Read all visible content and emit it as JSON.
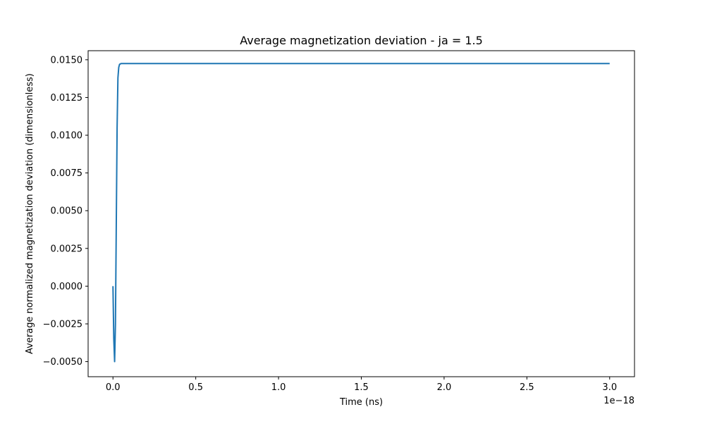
{
  "chart_data": {
    "type": "line",
    "title": "Average magnetization deviation - ja = 1.5",
    "xlabel": "Time (ns)",
    "ylabel": "Average normalized magnetization deviation (dimensionless)",
    "x_offset_text": "1e−18",
    "x_scale_factor": 1e-18,
    "xlim": [
      -1.5e-19,
      3.15e-18
    ],
    "ylim": [
      -0.006,
      0.0156
    ],
    "xticks": [
      0.0,
      5e-19,
      1e-18,
      1.5e-18,
      2e-18,
      2.5e-18,
      3e-18
    ],
    "xtick_labels": [
      "0.0",
      "0.5",
      "1.0",
      "1.5",
      "2.0",
      "2.5",
      "3.0"
    ],
    "yticks": [
      -0.005,
      -0.0025,
      0.0,
      0.0025,
      0.005,
      0.0075,
      0.01,
      0.0125,
      0.015
    ],
    "ytick_labels": [
      "−0.0050",
      "−0.0025",
      "0.0000",
      "0.0025",
      "0.0050",
      "0.0075",
      "0.0100",
      "0.0125",
      "0.0150"
    ],
    "grid": false,
    "series": [
      {
        "color": "#1f77b4",
        "x": [
          0.0,
          5e-21,
          1e-20,
          1.5e-20,
          2e-20,
          2.5e-20,
          3e-20,
          3.5e-20,
          4e-20,
          5e-20,
          6e-20,
          8e-20,
          1e-19,
          3e-19,
          1e-18,
          2e-18,
          3e-18
        ],
        "y": [
          0.0,
          -0.0035,
          -0.005,
          -0.0025,
          0.004,
          0.0105,
          0.0138,
          0.0145,
          0.0147,
          0.01475,
          0.01475,
          0.01475,
          0.01475,
          0.01475,
          0.01475,
          0.01475,
          0.01475
        ]
      }
    ]
  }
}
